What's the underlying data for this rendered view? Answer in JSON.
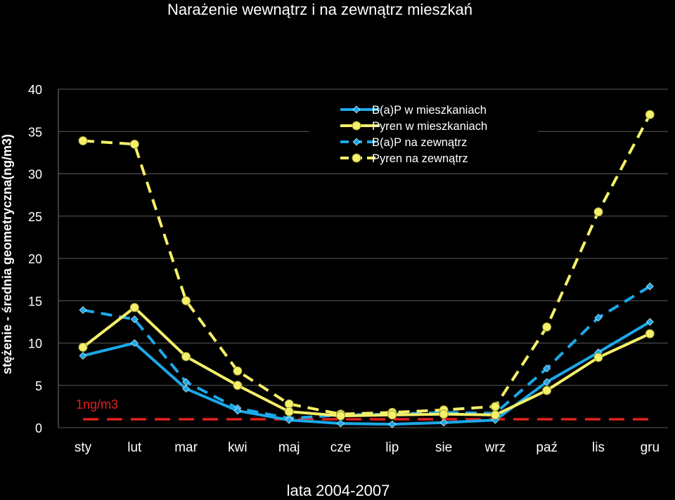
{
  "chart_data": {
    "type": "line",
    "title": "Narażenie  wewnątrz i na zewnątrz mieszkań",
    "xlabel": "lata 2004-2007",
    "ylabel": "stężenie - średnia geometryczna(ng/m3)",
    "ylim": [
      0,
      40
    ],
    "yticks": [
      "0",
      "5",
      "10",
      "15",
      "20",
      "25",
      "30",
      "35",
      "40"
    ],
    "categories": [
      "sty",
      "lut",
      "mar",
      "kwi",
      "maj",
      "cze",
      "lip",
      "sie",
      "wrz",
      "paź",
      "lis",
      "gru"
    ],
    "grid": "horizontal",
    "legend": "top-right",
    "series": [
      {
        "name": "B(a)P w mieszkaniach",
        "color": "#1ca8e8",
        "dash": "solid",
        "marker": "diamond",
        "values": [
          8.5,
          10.0,
          4.6,
          2.0,
          0.9,
          0.5,
          0.4,
          0.6,
          0.9,
          5.4,
          8.9,
          12.5
        ]
      },
      {
        "name": "Pyren w mieszkaniach",
        "color": "#f5f06a",
        "dash": "solid",
        "marker": "circle",
        "values": [
          9.5,
          14.2,
          8.4,
          5.0,
          1.9,
          1.4,
          1.5,
          1.6,
          1.5,
          4.4,
          8.3,
          11.1
        ]
      },
      {
        "name": "B(a)P na zewnątrz",
        "color": "#1ca8e8",
        "dash": "dashed",
        "marker": "diamond",
        "values": [
          13.9,
          12.8,
          5.4,
          2.3,
          1.1,
          1.5,
          1.6,
          1.8,
          1.7,
          7.0,
          13.0,
          16.7
        ]
      },
      {
        "name": "Pyren na zewnątrz",
        "color": "#f5f06a",
        "dash": "dashed",
        "marker": "circle",
        "values": [
          33.9,
          33.5,
          15.0,
          6.7,
          2.8,
          1.6,
          1.8,
          2.1,
          2.5,
          11.9,
          25.5,
          37.0
        ]
      }
    ],
    "reference_line": {
      "label": "1ng/m3",
      "value": 1,
      "color": "#e0201e"
    }
  }
}
